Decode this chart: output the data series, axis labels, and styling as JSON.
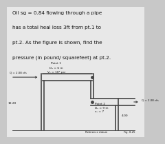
{
  "title_lines": [
    "Oil sg = 0.84 flowing through a pipe",
    "has a total heal loss 3ft from pt.1 to",
    "pt.2. As the figure is shown, find the",
    "pressure (in pound/ squarefeet) at pt.2."
  ],
  "bg_color": "#c8c8c8",
  "inner_bg": "#e8e8e8",
  "text_color": "#111111",
  "pipe_color": "#444444",
  "pipe_lw": 1.2,
  "point1_label": "Point 1",
  "point1_D": "D₁ = 6 in",
  "point1_V": "V₁ = 10² psi",
  "point2_label": "Point 2",
  "point2_D": "D₂ = 9 in",
  "point2_z": "z₂ = 7",
  "left_flow_label": "Q = 2.08 cfs",
  "right_flow_label": "Q = 2.08 cfs",
  "left_z_label": "10.20",
  "right_z_label": "4.00",
  "datum_label": "Reference datum",
  "fig_label": "Fig. 8-25",
  "title_fs": 5.2,
  "small_fs": 3.2
}
